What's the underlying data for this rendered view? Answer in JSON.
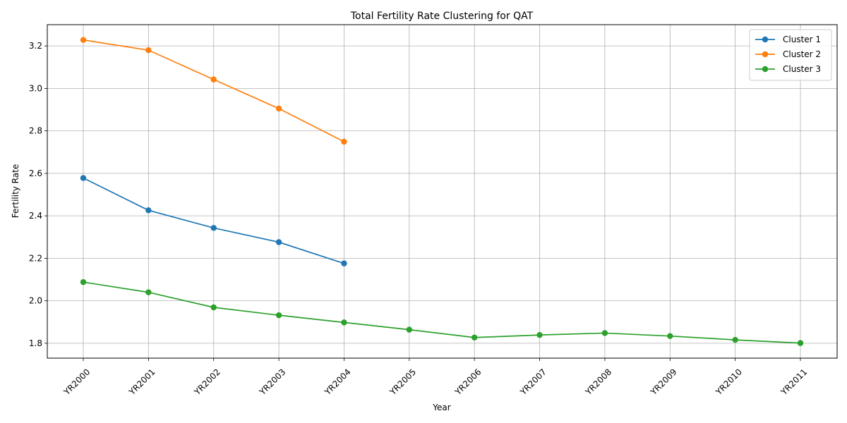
{
  "chart_data": {
    "type": "line",
    "title": "Total Fertility Rate Clustering for QAT",
    "xlabel": "Year",
    "ylabel": "Fertility Rate",
    "categories": [
      "YR2000",
      "YR2001",
      "YR2002",
      "YR2003",
      "YR2004",
      "YR2005",
      "YR2006",
      "YR2007",
      "YR2008",
      "YR2009",
      "YR2010",
      "YR2011"
    ],
    "ylim": [
      1.73,
      3.3
    ],
    "yticks": [
      1.8,
      2.0,
      2.2,
      2.4,
      2.6,
      2.8,
      3.0,
      3.2
    ],
    "ytick_labels": [
      "1.8",
      "2.0",
      "2.2",
      "2.4",
      "2.6",
      "2.8",
      "3.0",
      "3.2"
    ],
    "grid": true,
    "legend_position": "top-right",
    "series": [
      {
        "name": "Cluster 1",
        "color": "#1f77b4",
        "values": [
          2.578,
          2.426,
          2.343,
          2.276,
          2.176,
          null,
          null,
          null,
          null,
          null,
          null,
          null
        ]
      },
      {
        "name": "Cluster 2",
        "color": "#ff7f0e",
        "values": [
          3.228,
          3.18,
          3.042,
          2.905,
          2.749,
          null,
          null,
          null,
          null,
          null,
          null,
          null
        ]
      },
      {
        "name": "Cluster 3",
        "color": "#2ca02c",
        "values": [
          2.088,
          2.04,
          1.969,
          1.932,
          1.898,
          1.864,
          1.827,
          1.839,
          1.848,
          1.834,
          1.816,
          1.801
        ]
      }
    ]
  }
}
